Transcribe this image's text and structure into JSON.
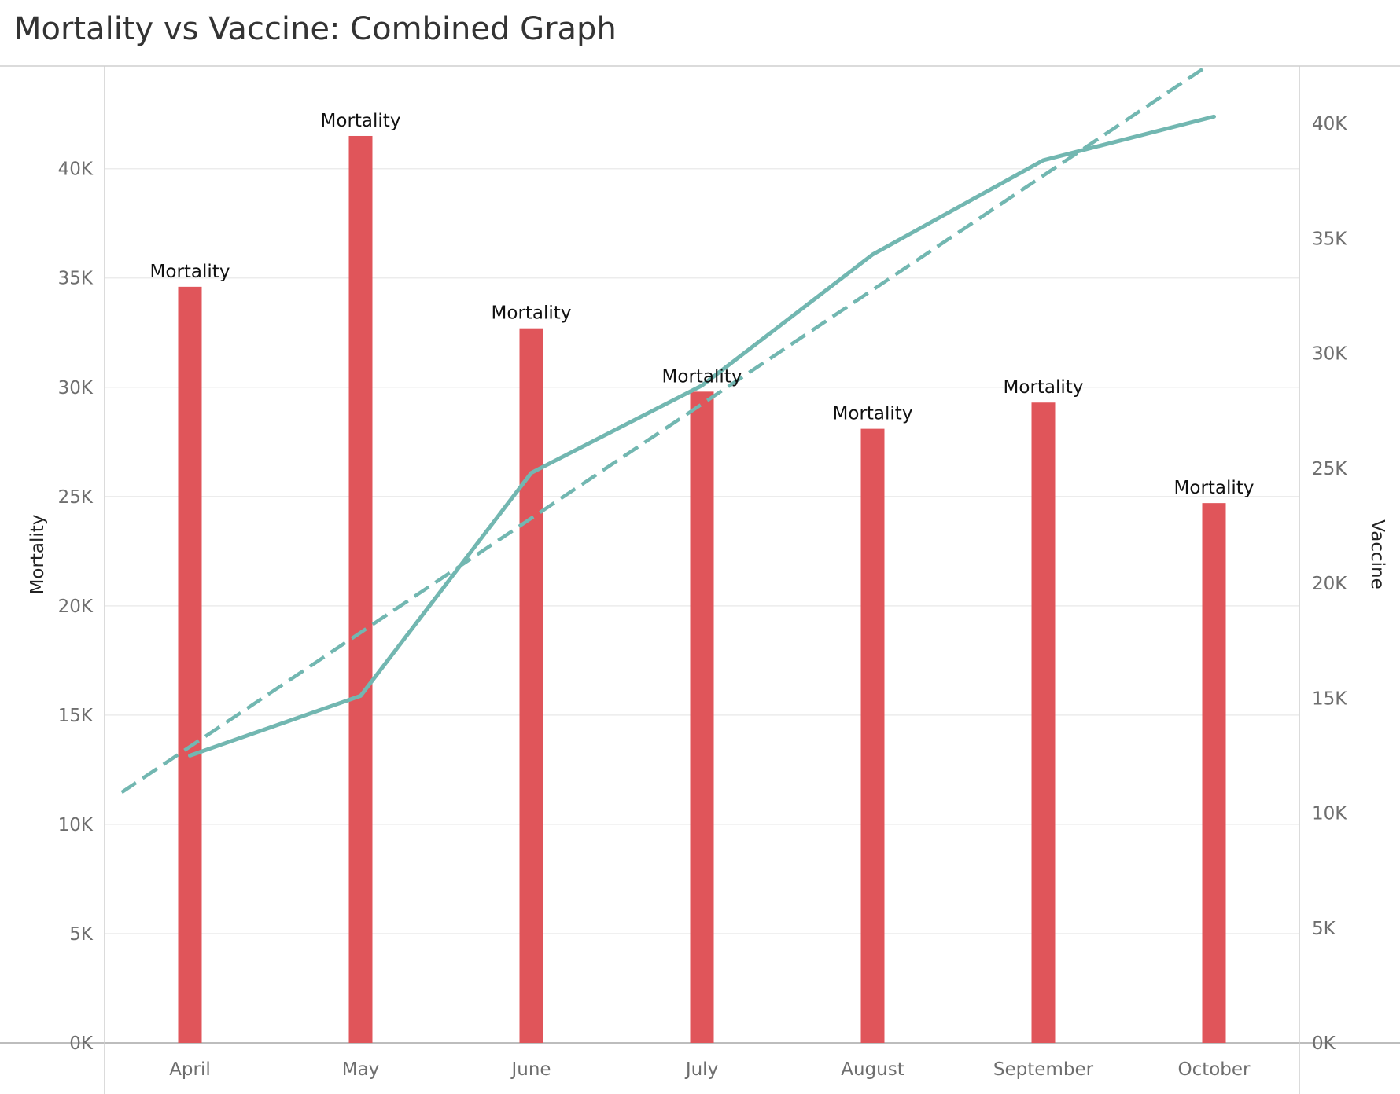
{
  "title": "Mortality vs Vaccine: Combined Graph",
  "chart_data": {
    "type": "bar",
    "title": "Mortality vs Vaccine: Combined Graph",
    "categories": [
      "April",
      "May",
      "June",
      "July",
      "August",
      "September",
      "October"
    ],
    "series": [
      {
        "name": "Mortality",
        "type": "bar",
        "axis": "left",
        "color": "#e0555a",
        "values": [
          34600,
          41500,
          32700,
          29800,
          28100,
          29300,
          24700
        ],
        "data_label": "Mortality"
      },
      {
        "name": "Vaccine",
        "type": "line",
        "axis": "right",
        "color": "#72b7b1",
        "values": [
          12500,
          15100,
          24800,
          28600,
          34300,
          38400,
          40300
        ]
      }
    ],
    "trend_line": {
      "series": "Vaccine",
      "style": "dashed",
      "color": "#72b7b1",
      "start": [
        -0.4,
        10900
      ],
      "end": [
        6.0,
        42700
      ]
    },
    "left_axis": {
      "label": "Mortality",
      "ylim": [
        0,
        44700
      ],
      "ticks": [
        0,
        5000,
        10000,
        15000,
        20000,
        25000,
        30000,
        35000,
        40000
      ],
      "tick_labels": [
        "0K",
        "5K",
        "10K",
        "15K",
        "20K",
        "25K",
        "30K",
        "35K",
        "40K"
      ]
    },
    "right_axis": {
      "label": "Vaccine",
      "ylim": [
        0,
        42500
      ],
      "ticks": [
        0,
        5000,
        10000,
        15000,
        20000,
        25000,
        30000,
        35000,
        40000
      ],
      "tick_labels": [
        "0K",
        "5K",
        "10K",
        "15K",
        "20K",
        "25K",
        "30K",
        "35K",
        "40K"
      ]
    },
    "grid": true,
    "legend": "none"
  }
}
